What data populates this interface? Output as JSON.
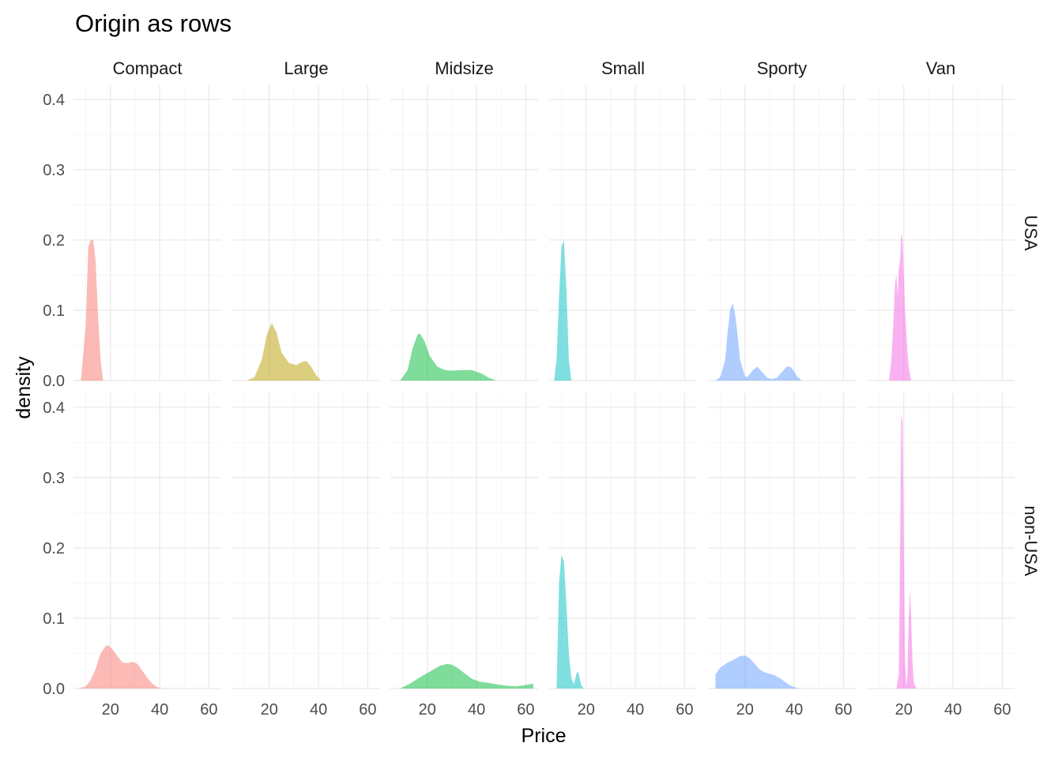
{
  "chart_data": {
    "type": "area",
    "title": "Origin as rows",
    "xlabel": "Price",
    "ylabel": "density",
    "xlim": [
      5,
      65
    ],
    "ylim": [
      0,
      0.42
    ],
    "xticks": [
      20,
      40,
      60
    ],
    "yticks": [
      0.0,
      0.1,
      0.2,
      0.3,
      0.4
    ],
    "ytick_labels": [
      "0.0",
      "0.1",
      "0.2",
      "0.3",
      "0.4"
    ],
    "grid": true,
    "legend": "none",
    "col_facets": [
      "Compact",
      "Large",
      "Midsize",
      "Small",
      "Sporty",
      "Van"
    ],
    "row_facets": [
      "USA",
      "non-USA"
    ],
    "colors": {
      "Compact": "#F8766D",
      "Large": "#B79F00",
      "Midsize": "#00BA38",
      "Small": "#00BFC4",
      "Sporty": "#619CFF",
      "Van": "#F564E3"
    },
    "fill_opacity": 0.5,
    "panels": [
      {
        "row": "USA",
        "col": "Compact",
        "x": [
          8,
          10,
          11,
          12,
          13,
          14,
          15,
          16,
          17
        ],
        "y": [
          0,
          0.08,
          0.19,
          0.2,
          0.2,
          0.17,
          0.09,
          0.03,
          0
        ]
      },
      {
        "row": "USA",
        "col": "Large",
        "x": [
          11,
          14,
          17,
          19,
          21,
          23,
          25,
          28,
          31,
          33,
          35,
          37,
          39,
          41
        ],
        "y": [
          0,
          0.005,
          0.03,
          0.065,
          0.082,
          0.068,
          0.04,
          0.025,
          0.022,
          0.026,
          0.028,
          0.02,
          0.008,
          0
        ]
      },
      {
        "row": "USA",
        "col": "Midsize",
        "x": [
          9,
          12,
          14,
          16,
          17,
          19,
          21,
          24,
          27,
          30,
          34,
          38,
          42,
          45,
          48
        ],
        "y": [
          0,
          0.015,
          0.045,
          0.065,
          0.067,
          0.055,
          0.035,
          0.02,
          0.015,
          0.014,
          0.015,
          0.015,
          0.01,
          0.004,
          0
        ]
      },
      {
        "row": "USA",
        "col": "Small",
        "x": [
          7,
          8,
          9,
          10,
          11,
          12,
          13,
          14
        ],
        "y": [
          0,
          0.03,
          0.12,
          0.19,
          0.2,
          0.13,
          0.03,
          0
        ]
      },
      {
        "row": "USA",
        "col": "Sporty",
        "x": [
          8,
          10,
          12,
          13,
          14,
          15,
          16,
          17,
          18,
          20,
          21,
          23,
          25,
          27,
          29,
          31,
          33,
          35,
          37,
          38,
          39,
          41,
          43
        ],
        "y": [
          0,
          0.005,
          0.03,
          0.07,
          0.1,
          0.11,
          0.095,
          0.065,
          0.03,
          0.006,
          0.005,
          0.014,
          0.02,
          0.012,
          0.004,
          0.002,
          0.004,
          0.012,
          0.02,
          0.02,
          0.018,
          0.007,
          0
        ]
      },
      {
        "row": "USA",
        "col": "Van",
        "x": [
          14,
          15,
          16,
          16.5,
          17,
          17.5,
          18,
          18.5,
          19,
          19.5,
          20,
          20.5,
          21,
          21.5,
          22,
          23
        ],
        "y": [
          0,
          0.03,
          0.1,
          0.14,
          0.15,
          0.12,
          0.16,
          0.17,
          0.21,
          0.2,
          0.15,
          0.1,
          0.07,
          0.04,
          0.02,
          0
        ]
      },
      {
        "row": "non-USA",
        "col": "Compact",
        "x": [
          7,
          10,
          12,
          14,
          16,
          18,
          19,
          21,
          23,
          25,
          27,
          29,
          31,
          33,
          35,
          37,
          39,
          41
        ],
        "y": [
          0,
          0.003,
          0.012,
          0.028,
          0.05,
          0.06,
          0.062,
          0.055,
          0.045,
          0.037,
          0.036,
          0.038,
          0.035,
          0.025,
          0.015,
          0.007,
          0.002,
          0
        ]
      },
      {
        "row": "non-USA",
        "col": "Midsize",
        "x": [
          9,
          13,
          17,
          21,
          25,
          28,
          30,
          32,
          35,
          38,
          41,
          45,
          48,
          52,
          56,
          60,
          63
        ],
        "y": [
          0,
          0.007,
          0.016,
          0.024,
          0.032,
          0.035,
          0.034,
          0.03,
          0.022,
          0.014,
          0.01,
          0.008,
          0.006,
          0.004,
          0.003,
          0.005,
          0.007
        ]
      },
      {
        "row": "non-USA",
        "col": "Small",
        "x": [
          8,
          9,
          10,
          11,
          12,
          13,
          14,
          15,
          16,
          16.5,
          17,
          18,
          19
        ],
        "y": [
          0,
          0.15,
          0.19,
          0.18,
          0.12,
          0.05,
          0.015,
          0.006,
          0.02,
          0.025,
          0.02,
          0.005,
          0
        ]
      },
      {
        "row": "non-USA",
        "col": "Sporty",
        "x": [
          8,
          10,
          13,
          16,
          18,
          20,
          22,
          24,
          26,
          28,
          30,
          32,
          34,
          36,
          38,
          40,
          42
        ],
        "y": [
          0.02,
          0.03,
          0.037,
          0.042,
          0.046,
          0.047,
          0.043,
          0.035,
          0.027,
          0.023,
          0.021,
          0.019,
          0.015,
          0.01,
          0.005,
          0.002,
          0
        ]
      },
      {
        "row": "non-USA",
        "col": "Van",
        "x": [
          17,
          18,
          18.5,
          19,
          19.5,
          20,
          20.5,
          21,
          21.5,
          22,
          22.5,
          23,
          23.5,
          24,
          25
        ],
        "y": [
          0,
          0.02,
          0.2,
          0.39,
          0.38,
          0.2,
          0.04,
          0.003,
          0.02,
          0.1,
          0.14,
          0.1,
          0.04,
          0.01,
          0
        ]
      }
    ]
  }
}
